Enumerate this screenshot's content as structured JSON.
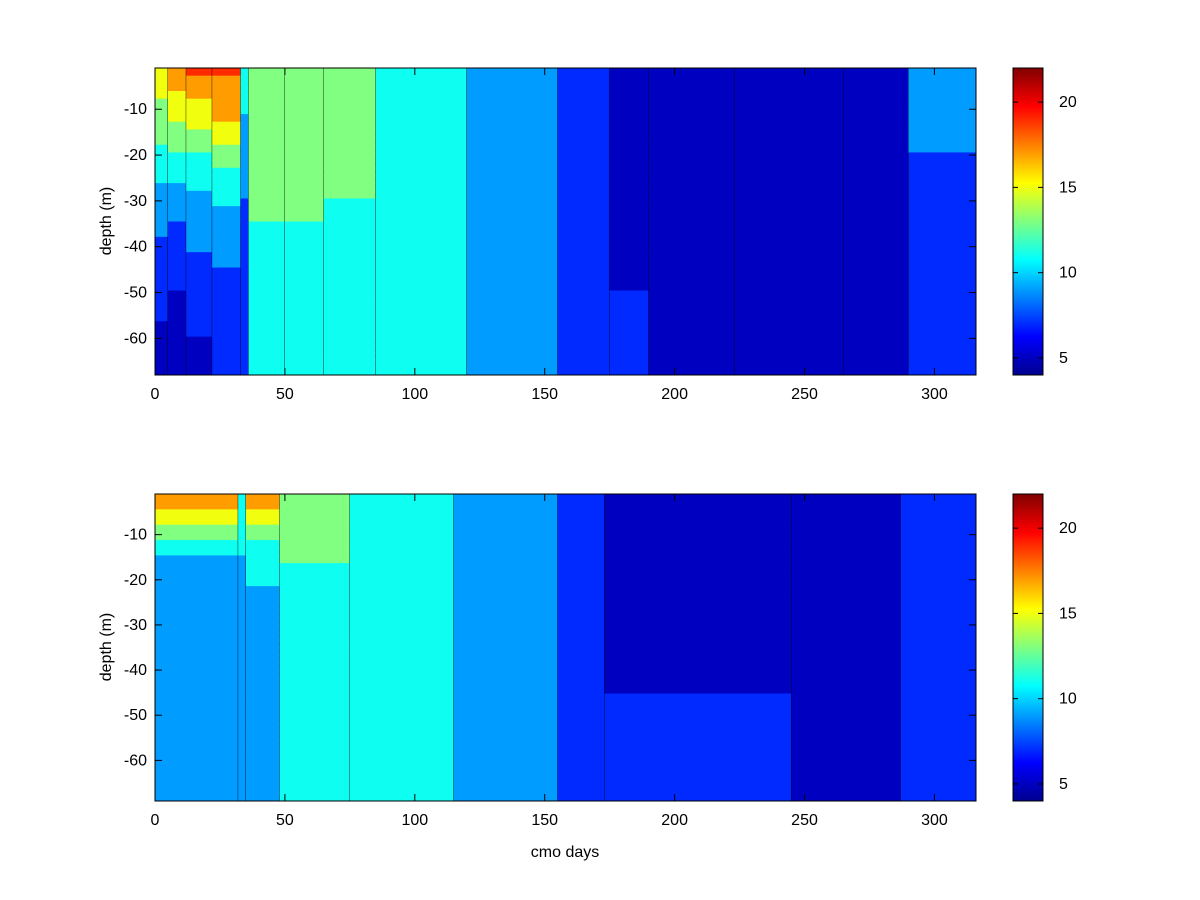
{
  "chart_data": [
    {
      "type": "heatmap",
      "subtype": "filled-contour",
      "title": "",
      "xlabel": "",
      "ylabel": "depth (m)",
      "xlim": [
        0,
        316
      ],
      "ylim": [
        -68,
        -1
      ],
      "xticks": [
        0,
        50,
        100,
        150,
        200,
        250,
        300
      ],
      "yticks": [
        -10,
        -20,
        -30,
        -40,
        -50,
        -60
      ],
      "colorbar": {
        "range": [
          4,
          22
        ],
        "ticks": [
          5,
          10,
          15,
          20
        ],
        "colormap": "jet"
      },
      "contour_lines": true,
      "segments": [
        {
          "x": [
            0,
            5
          ],
          "profile": [
            {
              "d": -1,
              "v": 16
            },
            {
              "d": -8,
              "v": 14
            },
            {
              "d": -18,
              "v": 12
            },
            {
              "d": -30,
              "v": 9
            },
            {
              "d": -45,
              "v": 7
            },
            {
              "d": -68,
              "v": 5
            }
          ]
        },
        {
          "x": [
            5,
            12
          ],
          "profile": [
            {
              "d": -1,
              "v": 17
            },
            {
              "d": -10,
              "v": 15
            },
            {
              "d": -22,
              "v": 11
            },
            {
              "d": -35,
              "v": 8
            },
            {
              "d": -50,
              "v": 6
            },
            {
              "d": -68,
              "v": 5
            }
          ]
        },
        {
          "x": [
            12,
            22
          ],
          "profile": [
            {
              "d": -1,
              "v": 18.5
            },
            {
              "d": -8,
              "v": 16
            },
            {
              "d": -20,
              "v": 12
            },
            {
              "d": -32,
              "v": 9
            },
            {
              "d": -50,
              "v": 7
            },
            {
              "d": -68,
              "v": 5
            }
          ]
        },
        {
          "x": [
            22,
            33
          ],
          "profile": [
            {
              "d": -1,
              "v": 18.5
            },
            {
              "d": -12,
              "v": 16
            },
            {
              "d": -22,
              "v": 12
            },
            {
              "d": -35,
              "v": 9
            },
            {
              "d": -55,
              "v": 7
            },
            {
              "d": -68,
              "v": 6
            }
          ]
        },
        {
          "x": [
            33,
            36
          ],
          "profile": [
            {
              "d": -1,
              "v": 11
            },
            {
              "d": -20,
              "v": 9
            },
            {
              "d": -40,
              "v": 7
            },
            {
              "d": -68,
              "v": 6
            }
          ]
        },
        {
          "x": [
            36,
            50
          ],
          "profile": [
            {
              "d": -1,
              "v": 14
            },
            {
              "d": -20,
              "v": 13
            },
            {
              "d": -35,
              "v": 12
            },
            {
              "d": -55,
              "v": 11
            },
            {
              "d": -68,
              "v": 10
            }
          ]
        },
        {
          "x": [
            50,
            65
          ],
          "profile": [
            {
              "d": -1,
              "v": 13.5
            },
            {
              "d": -25,
              "v": 12.5
            },
            {
              "d": -45,
              "v": 11.5
            },
            {
              "d": -68,
              "v": 10
            }
          ]
        },
        {
          "x": [
            65,
            85
          ],
          "profile": [
            {
              "d": -1,
              "v": 12
            },
            {
              "d": -30,
              "v": 12
            },
            {
              "d": -45,
              "v": 11
            },
            {
              "d": -68,
              "v": 10
            }
          ]
        },
        {
          "x": [
            85,
            120
          ],
          "profile": [
            {
              "d": -1,
              "v": 10
            },
            {
              "d": -68,
              "v": 10
            }
          ]
        },
        {
          "x": [
            120,
            155
          ],
          "profile": [
            {
              "d": -1,
              "v": 8
            },
            {
              "d": -68,
              "v": 8
            }
          ]
        },
        {
          "x": [
            155,
            175
          ],
          "profile": [
            {
              "d": -1,
              "v": 8
            },
            {
              "d": -40,
              "v": 7
            },
            {
              "d": -68,
              "v": 6
            }
          ]
        },
        {
          "x": [
            175,
            190
          ],
          "profile": [
            {
              "d": -1,
              "v": 5
            },
            {
              "d": -25,
              "v": 5.5
            },
            {
              "d": -50,
              "v": 6
            },
            {
              "d": -68,
              "v": 7
            }
          ]
        },
        {
          "x": [
            190,
            223
          ],
          "profile": [
            {
              "d": -1,
              "v": 5
            },
            {
              "d": -30,
              "v": 5.5
            },
            {
              "d": -68,
              "v": 6
            }
          ]
        },
        {
          "x": [
            223,
            265
          ],
          "profile": [
            {
              "d": -1,
              "v": 4.5
            },
            {
              "d": -68,
              "v": 4.5
            }
          ]
        },
        {
          "x": [
            265,
            290
          ],
          "profile": [
            {
              "d": -1,
              "v": 6
            },
            {
              "d": -40,
              "v": 5.5
            },
            {
              "d": -68,
              "v": 4.5
            }
          ]
        },
        {
          "x": [
            290,
            316
          ],
          "profile": [
            {
              "d": -1,
              "v": 9
            },
            {
              "d": -20,
              "v": 8
            },
            {
              "d": -35,
              "v": 7
            },
            {
              "d": -68,
              "v": 6
            }
          ]
        }
      ]
    },
    {
      "type": "heatmap",
      "subtype": "filled-contour",
      "title": "",
      "xlabel": "cmo days",
      "ylabel": "depth (m)",
      "xlim": [
        0,
        316
      ],
      "ylim": [
        -69,
        -1
      ],
      "xticks": [
        0,
        50,
        100,
        150,
        200,
        250,
        300
      ],
      "yticks": [
        -10,
        -20,
        -30,
        -40,
        -50,
        -60
      ],
      "colorbar": {
        "range": [
          4,
          22
        ],
        "ticks": [
          5,
          10,
          15,
          20
        ],
        "colormap": "jet"
      },
      "contour_lines": true,
      "segments": [
        {
          "x": [
            0,
            32
          ],
          "profile": [
            {
              "d": -1,
              "v": 18.5
            },
            {
              "d": -5,
              "v": 16
            },
            {
              "d": -8,
              "v": 14
            },
            {
              "d": -12,
              "v": 11
            },
            {
              "d": -16,
              "v": 9
            },
            {
              "d": -69,
              "v": 8
            }
          ]
        },
        {
          "x": [
            32,
            35
          ],
          "profile": [
            {
              "d": -1,
              "v": 12
            },
            {
              "d": -15,
              "v": 10
            },
            {
              "d": -28,
              "v": 9
            },
            {
              "d": -69,
              "v": 8
            }
          ]
        },
        {
          "x": [
            35,
            48
          ],
          "profile": [
            {
              "d": -1,
              "v": 18
            },
            {
              "d": -6,
              "v": 15
            },
            {
              "d": -12,
              "v": 12
            },
            {
              "d": -22,
              "v": 10
            },
            {
              "d": -69,
              "v": 8
            }
          ]
        },
        {
          "x": [
            48,
            75
          ],
          "profile": [
            {
              "d": -1,
              "v": 13.5
            },
            {
              "d": -16,
              "v": 12
            },
            {
              "d": -22,
              "v": 10
            },
            {
              "d": -69,
              "v": 10
            }
          ]
        },
        {
          "x": [
            75,
            115
          ],
          "profile": [
            {
              "d": -1,
              "v": 12
            },
            {
              "d": -20,
              "v": 11
            },
            {
              "d": -30,
              "v": 10
            },
            {
              "d": -69,
              "v": 10
            }
          ]
        },
        {
          "x": [
            115,
            155
          ],
          "profile": [
            {
              "d": -1,
              "v": 8
            },
            {
              "d": -69,
              "v": 8
            }
          ]
        },
        {
          "x": [
            155,
            173
          ],
          "profile": [
            {
              "d": -1,
              "v": 6
            },
            {
              "d": -40,
              "v": 6
            },
            {
              "d": -60,
              "v": 6
            },
            {
              "d": -69,
              "v": 7
            }
          ]
        },
        {
          "x": [
            173,
            245
          ],
          "profile": [
            {
              "d": -1,
              "v": 4.8
            },
            {
              "d": -40,
              "v": 5
            },
            {
              "d": -45,
              "v": 6
            },
            {
              "d": -69,
              "v": 6
            }
          ]
        },
        {
          "x": [
            245,
            287
          ],
          "profile": [
            {
              "d": -1,
              "v": 4.8
            },
            {
              "d": -25,
              "v": 5
            },
            {
              "d": -69,
              "v": 4.8
            }
          ]
        },
        {
          "x": [
            287,
            316
          ],
          "profile": [
            {
              "d": -1,
              "v": 8
            },
            {
              "d": -15,
              "v": 7
            },
            {
              "d": -30,
              "v": 6.5
            },
            {
              "d": -69,
              "v": 6
            }
          ]
        }
      ]
    }
  ]
}
